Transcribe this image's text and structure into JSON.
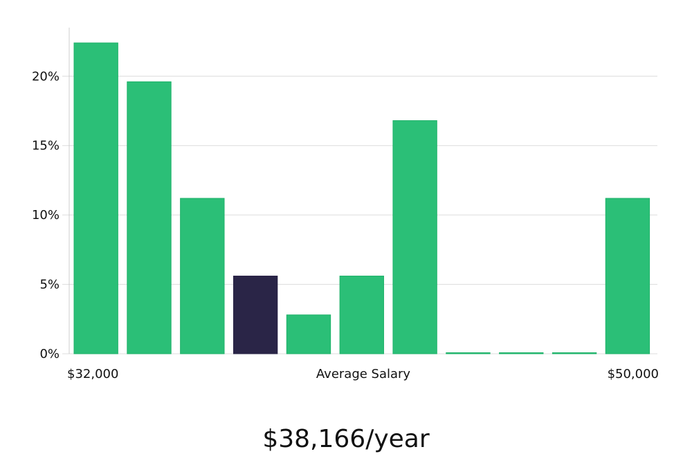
{
  "chart_data": {
    "type": "bar",
    "values": [
      22.4,
      19.6,
      11.2,
      5.6,
      2.8,
      5.6,
      16.8,
      0,
      0,
      0,
      11.2
    ],
    "highlight_index": 3,
    "ylim": [
      0,
      23.5
    ],
    "yticks": [
      {
        "value": 0,
        "label": "0%"
      },
      {
        "value": 5,
        "label": "5%"
      },
      {
        "value": 10,
        "label": "10%"
      },
      {
        "value": 15,
        "label": "15%"
      },
      {
        "value": 20,
        "label": "20%"
      }
    ],
    "xlabel_min": "$32,000",
    "xlabel": "Average Salary",
    "xlabel_max": "$50,000",
    "grid": true,
    "colors": {
      "bar": "#2bbf77",
      "bar_stroke": "#1fb26a",
      "highlight": "#2a2547",
      "grid": "#dcdcdc",
      "axis": "#cccccc"
    }
  },
  "summary": {
    "value_text": "$38,166/year"
  }
}
